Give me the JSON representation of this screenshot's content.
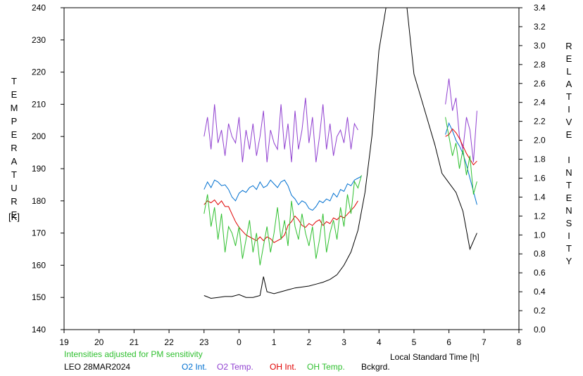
{
  "chart_data": {
    "type": "line",
    "xlabel": "Local Standard Time [h]",
    "ylabel_left": "TEMPERATURE",
    "ylabel_left_unit": "[K]",
    "ylabel_right": "RELATIVE INTENSITY",
    "note": "Intensities adjusted for PM sensitivity",
    "station_date": "LEO 28MAR2024",
    "x_ticks": [
      "19",
      "20",
      "21",
      "22",
      "23",
      "0",
      "1",
      "2",
      "3",
      "4",
      "5",
      "6",
      "7",
      "8"
    ],
    "y_left_ticks": [
      "140",
      "150",
      "160",
      "170",
      "180",
      "190",
      "200",
      "210",
      "220",
      "230",
      "240"
    ],
    "y_right_ticks": [
      "0.0",
      "0.2",
      "0.4",
      "0.6",
      "0.8",
      "1.0",
      "1.2",
      "1.4",
      "1.6",
      "1.8",
      "2.0",
      "2.2",
      "2.4",
      "2.6",
      "2.8",
      "3.0",
      "3.2",
      "3.4"
    ],
    "xlim": [
      19,
      32
    ],
    "ylim_left": [
      140,
      240
    ],
    "ylim_right": [
      0,
      3.4
    ],
    "grid": false,
    "legend_placement": "bottom",
    "series": [
      {
        "name": "O2 Int.",
        "color": "#0070d0",
        "axis": "right",
        "x": [
          23.0,
          23.1,
          23.2,
          23.3,
          23.4,
          23.5,
          23.6,
          23.7,
          23.8,
          23.9,
          24.0,
          24.1,
          24.2,
          24.3,
          24.4,
          24.5,
          24.6,
          24.7,
          24.8,
          24.9,
          25.0,
          25.1,
          25.2,
          25.3,
          25.4,
          25.5,
          25.6,
          25.7,
          25.8,
          25.9,
          26.0,
          26.1,
          26.2,
          26.3,
          26.4,
          26.5,
          26.6,
          26.7,
          26.8,
          26.9,
          27.0,
          27.1,
          27.2,
          27.3,
          27.4,
          27.5,
          29.9,
          30.0,
          30.1,
          30.2,
          30.3,
          30.4,
          30.5,
          30.6,
          30.7,
          30.8
        ],
        "y": [
          1.48,
          1.56,
          1.5,
          1.58,
          1.56,
          1.52,
          1.53,
          1.48,
          1.4,
          1.36,
          1.44,
          1.47,
          1.45,
          1.5,
          1.52,
          1.48,
          1.56,
          1.5,
          1.52,
          1.58,
          1.54,
          1.5,
          1.56,
          1.58,
          1.52,
          1.42,
          1.38,
          1.32,
          1.36,
          1.34,
          1.28,
          1.26,
          1.3,
          1.36,
          1.34,
          1.38,
          1.36,
          1.44,
          1.4,
          1.48,
          1.46,
          1.54,
          1.52,
          1.58,
          1.6,
          1.62,
          2.06,
          2.18,
          2.1,
          2.0,
          1.94,
          1.86,
          1.74,
          1.6,
          1.46,
          1.32
        ]
      },
      {
        "name": "O2 Temp.",
        "color": "#9040d0",
        "axis": "left",
        "x": [
          23.0,
          23.1,
          23.2,
          23.3,
          23.4,
          23.5,
          23.6,
          23.7,
          23.8,
          23.9,
          24.0,
          24.1,
          24.2,
          24.3,
          24.4,
          24.5,
          24.6,
          24.7,
          24.8,
          24.9,
          25.0,
          25.1,
          25.2,
          25.3,
          25.4,
          25.5,
          25.6,
          25.7,
          25.8,
          25.9,
          26.0,
          26.1,
          26.2,
          26.3,
          26.4,
          26.5,
          26.6,
          26.7,
          26.8,
          26.9,
          27.0,
          27.1,
          27.2,
          27.3,
          27.4,
          29.9,
          30.0,
          30.1,
          30.2,
          30.3,
          30.4,
          30.5,
          30.6,
          30.7,
          30.8
        ],
        "y": [
          200,
          206,
          196,
          210,
          198,
          202,
          194,
          204,
          200,
          198,
          206,
          192,
          202,
          196,
          204,
          194,
          200,
          208,
          192,
          202,
          198,
          196,
          210,
          196,
          204,
          192,
          208,
          196,
          202,
          212,
          198,
          206,
          192,
          200,
          210,
          196,
          204,
          194,
          200,
          202,
          198,
          206,
          196,
          204,
          202,
          210,
          218,
          208,
          212,
          200,
          196,
          206,
          202,
          192,
          208
        ]
      },
      {
        "name": "OH Int.",
        "color": "#e00000",
        "axis": "right",
        "x": [
          23.0,
          23.1,
          23.2,
          23.3,
          23.4,
          23.5,
          23.6,
          23.7,
          23.8,
          23.9,
          24.0,
          24.1,
          24.2,
          24.3,
          24.4,
          24.5,
          24.6,
          24.7,
          24.8,
          24.9,
          25.0,
          25.1,
          25.2,
          25.3,
          25.4,
          25.5,
          25.6,
          25.7,
          25.8,
          25.9,
          26.0,
          26.1,
          26.2,
          26.3,
          26.4,
          26.5,
          26.6,
          26.7,
          26.8,
          26.9,
          27.0,
          27.1,
          27.2,
          27.3,
          27.4,
          29.9,
          30.0,
          30.1,
          30.2,
          30.3,
          30.4,
          30.5,
          30.6,
          30.7,
          30.8
        ],
        "y": [
          1.32,
          1.36,
          1.34,
          1.37,
          1.32,
          1.36,
          1.3,
          1.3,
          1.22,
          1.14,
          1.08,
          1.04,
          1.0,
          0.98,
          0.96,
          0.94,
          0.98,
          0.94,
          0.98,
          0.96,
          0.92,
          0.94,
          0.96,
          1.0,
          1.1,
          1.14,
          1.2,
          1.16,
          1.1,
          1.08,
          1.12,
          1.1,
          1.14,
          1.16,
          1.1,
          1.14,
          1.12,
          1.18,
          1.16,
          1.2,
          1.18,
          1.22,
          1.26,
          1.3,
          1.36,
          2.04,
          2.06,
          2.12,
          2.08,
          2.02,
          1.94,
          1.86,
          1.8,
          1.74,
          1.78
        ]
      },
      {
        "name": "OH Temp.",
        "color": "#30c030",
        "axis": "left",
        "x": [
          23.0,
          23.1,
          23.2,
          23.3,
          23.4,
          23.5,
          23.6,
          23.7,
          23.8,
          23.9,
          24.0,
          24.1,
          24.2,
          24.3,
          24.4,
          24.5,
          24.6,
          24.7,
          24.8,
          24.9,
          25.0,
          25.1,
          25.2,
          25.3,
          25.4,
          25.5,
          25.6,
          25.7,
          25.8,
          25.9,
          26.0,
          26.1,
          26.2,
          26.3,
          26.4,
          26.5,
          26.6,
          26.7,
          26.8,
          26.9,
          27.0,
          27.1,
          27.2,
          27.3,
          27.4,
          27.5,
          29.9,
          30.0,
          30.1,
          30.2,
          30.3,
          30.4,
          30.5,
          30.6,
          30.7,
          30.8
        ],
        "y": [
          176,
          182,
          172,
          178,
          168,
          176,
          164,
          172,
          170,
          166,
          172,
          162,
          168,
          174,
          164,
          170,
          160,
          166,
          172,
          164,
          170,
          178,
          168,
          174,
          166,
          180,
          172,
          168,
          176,
          170,
          166,
          172,
          162,
          168,
          176,
          164,
          170,
          174,
          168,
          178,
          172,
          182,
          176,
          186,
          184,
          188,
          206,
          200,
          194,
          198,
          190,
          196,
          188,
          194,
          182,
          186
        ]
      },
      {
        "name": "Bckgrd.",
        "color": "#000000",
        "axis": "right",
        "x": [
          23.0,
          23.2,
          23.4,
          23.6,
          23.8,
          24.0,
          24.2,
          24.4,
          24.6,
          24.7,
          24.8,
          25.0,
          25.2,
          25.4,
          25.6,
          25.8,
          26.0,
          26.2,
          26.4,
          26.6,
          26.8,
          27.0,
          27.2,
          27.4,
          27.6,
          27.8,
          28.0,
          28.2,
          28.4,
          28.6,
          28.8,
          29.0,
          29.2,
          29.4,
          29.6,
          29.8,
          30.0,
          30.2,
          30.4,
          30.6,
          30.8
        ],
        "y": [
          0.36,
          0.33,
          0.34,
          0.35,
          0.35,
          0.37,
          0.34,
          0.34,
          0.36,
          0.56,
          0.4,
          0.38,
          0.4,
          0.42,
          0.44,
          0.45,
          0.46,
          0.48,
          0.5,
          0.53,
          0.58,
          0.68,
          0.82,
          1.05,
          1.45,
          2.05,
          2.95,
          3.4,
          3.4,
          3.4,
          3.4,
          2.7,
          2.45,
          2.2,
          1.95,
          1.65,
          1.55,
          1.45,
          1.25,
          0.85,
          1.02
        ]
      }
    ]
  }
}
